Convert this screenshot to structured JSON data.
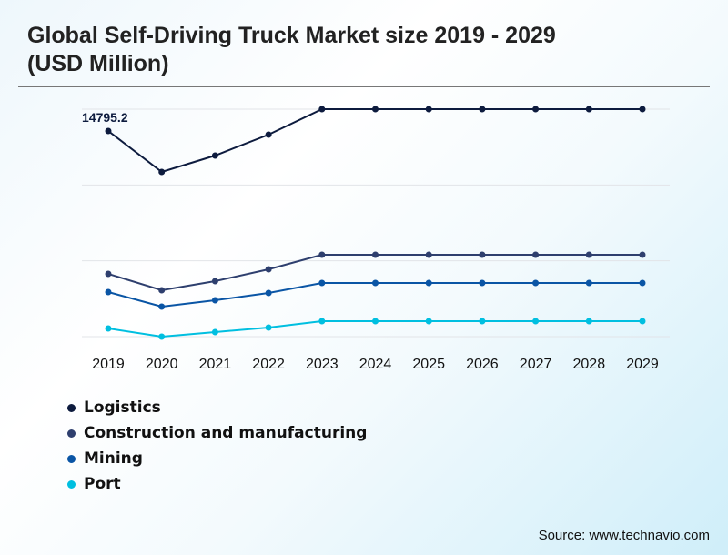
{
  "title": "Global Self-Driving Truck Market size 2019 - 2029 (USD Million)",
  "source": "Source: www.technavio.com",
  "chart_data": {
    "type": "line",
    "title": "Global Self-Driving Truck Market size 2019 - 2029 (USD Million)",
    "x": [
      "2019",
      "2020",
      "2021",
      "2022",
      "2023",
      "2024",
      "2025",
      "2026",
      "2027",
      "2028",
      "2029"
    ],
    "ylim": [
      0,
      16367
    ],
    "grid": true,
    "legend": "bottom-left",
    "annotation": "14795.2",
    "series": [
      {
        "name": "Logistics",
        "color": "#0d1b3e",
        "values": [
          14795.2,
          11850,
          13028,
          14534,
          16367,
          16367,
          16367,
          16367,
          16367,
          16367,
          16367
        ]
      },
      {
        "name": "Construction and manufacturing",
        "color": "#2e3f6e",
        "values": [
          4517,
          3339,
          3994,
          4845,
          5892,
          5892,
          5892,
          5892,
          5892,
          5892,
          5892
        ]
      },
      {
        "name": "Mining",
        "color": "#0a55a5",
        "values": [
          3208,
          2160,
          2619,
          3143,
          3863,
          3863,
          3863,
          3863,
          3863,
          3863,
          3863
        ]
      },
      {
        "name": "Port",
        "color": "#00bfe0",
        "values": [
          589,
          0,
          327,
          655,
          1113,
          1113,
          1113,
          1113,
          1113,
          1113,
          1113
        ]
      }
    ]
  }
}
